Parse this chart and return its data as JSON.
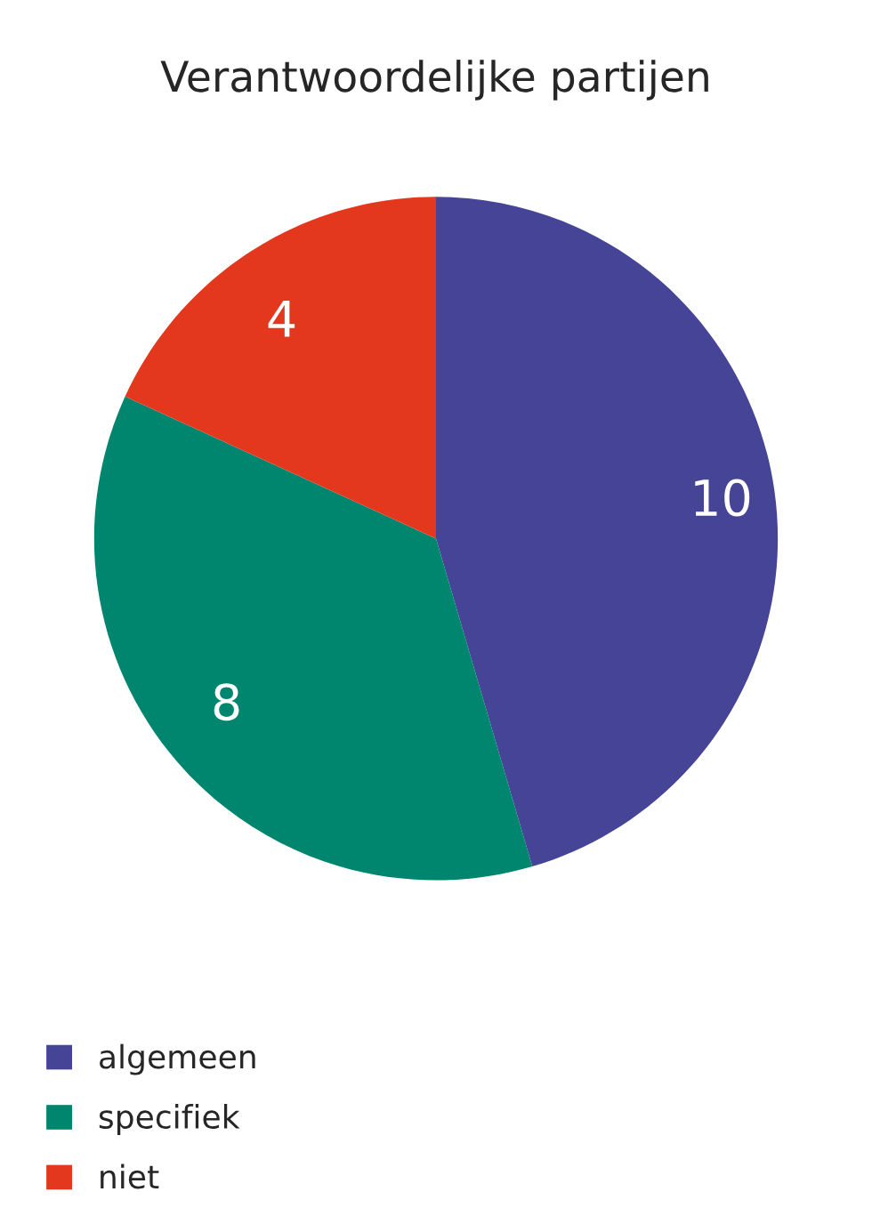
{
  "chart_data": {
    "type": "pie",
    "title": "Verantwoordelijke partijen",
    "categories": [
      "algemeen",
      "specifiek",
      "niet"
    ],
    "values": [
      10,
      8,
      4
    ],
    "colors": [
      "#464496",
      "#00856f",
      "#e4381e"
    ],
    "data_labels": true,
    "legend": "bottom left"
  }
}
